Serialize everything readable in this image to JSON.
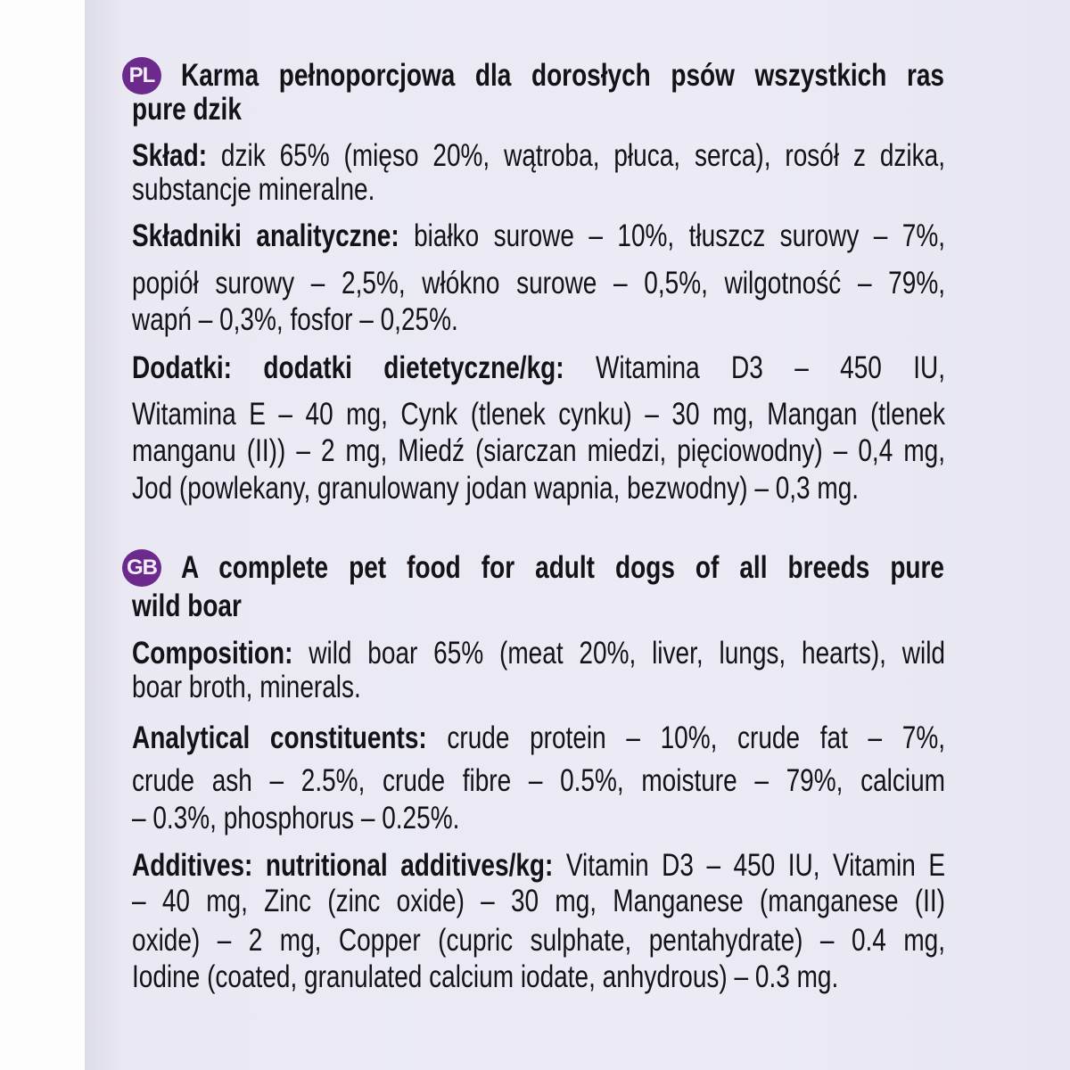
{
  "colors": {
    "badge": "#6b2a8c",
    "label_background": "#ebeaf4",
    "text": "#141216"
  },
  "sections": [
    {
      "badge": "PL",
      "lines": [
        {
          "top": "",
          "segments": [
            {
              "bold": true,
              "text": "Karma pełnoporcjowa dla dorosłych psów wszystkich ras"
            }
          ],
          "justify": true,
          "head": true
        },
        {
          "segments": [
            {
              "bold": true,
              "text": "pure dzik"
            }
          ]
        },
        {
          "segments": [
            {
              "bold": true,
              "text": "Skład: "
            },
            {
              "bold": false,
              "text": "dzik 65% (mięso 20%, wątroba, płuca, serca), rosół z dzika,"
            }
          ],
          "justify": true
        },
        {
          "segments": [
            {
              "bold": false,
              "text": "substancje mineralne."
            }
          ]
        },
        {
          "segments": [
            {
              "bold": true,
              "text": "Składniki analityczne: "
            },
            {
              "bold": false,
              "text": "białko surowe – 10%, tłuszcz surowy – 7%,"
            }
          ],
          "justify": true
        },
        {
          "segments": [
            {
              "bold": false,
              "text": "popiół surowy – 2,5%, włókno surowe – 0,5%, wilgotność – 79%,"
            }
          ],
          "justify": true
        },
        {
          "segments": [
            {
              "bold": false,
              "text": "wapń – 0,3%, fosfor – 0,25%."
            }
          ]
        },
        {
          "segments": [
            {
              "bold": true,
              "text": "Dodatki: dodatki dietetyczne/kg: "
            },
            {
              "bold": false,
              "text": "Witamina D3 – 450 IU,"
            }
          ],
          "justify": true
        },
        {
          "segments": [
            {
              "bold": false,
              "text": "Witamina E – 40 mg, Cynk (tlenek cynku) – 30 mg, Mangan (tlenek"
            }
          ],
          "justify": true
        },
        {
          "segments": [
            {
              "bold": false,
              "text": "manganu (II)) – 2 mg, Miedź (siarczan miedzi, pięciowodny) – 0,4 mg,"
            }
          ],
          "justify": true
        },
        {
          "segments": [
            {
              "bold": false,
              "text": "Jod (powlekany, granulowany jodan wapnia, bezwodny) – 0,3 mg."
            }
          ]
        }
      ]
    },
    {
      "badge": "GB",
      "lines": [
        {
          "segments": [
            {
              "bold": true,
              "text": "A complete pet food for adult dogs of all breeds pure"
            }
          ],
          "justify": true,
          "head": true
        },
        {
          "segments": [
            {
              "bold": true,
              "text": "wild boar"
            }
          ]
        },
        {
          "segments": [
            {
              "bold": true,
              "text": "Composition: "
            },
            {
              "bold": false,
              "text": "wild boar 65% (meat 20%, liver, lungs, hearts), wild"
            }
          ],
          "justify": true
        },
        {
          "segments": [
            {
              "bold": false,
              "text": "boar broth, minerals."
            }
          ]
        },
        {
          "segments": [
            {
              "bold": true,
              "text": "Analytical constituents: "
            },
            {
              "bold": false,
              "text": "crude protein – 10%, crude fat – 7%,"
            }
          ],
          "justify": true
        },
        {
          "segments": [
            {
              "bold": false,
              "text": "crude ash – 2.5%, crude fibre – 0.5%, moisture – 79%, calcium"
            }
          ],
          "justify": true
        },
        {
          "segments": [
            {
              "bold": false,
              "text": "– 0.3%, phosphorus – 0.25%."
            }
          ]
        },
        {
          "segments": [
            {
              "bold": true,
              "text": "Additives: nutritional additives/kg: "
            },
            {
              "bold": false,
              "text": "Vitamin D3 – 450 IU, Vitamin E"
            }
          ],
          "justify": true
        },
        {
          "segments": [
            {
              "bold": false,
              "text": "– 40 mg, Zinc (zinc oxide) – 30 mg, Manganese (manganese (II)"
            }
          ],
          "justify": true
        },
        {
          "segments": [
            {
              "bold": false,
              "text": "oxide) – 2 mg, Copper (cupric sulphate, pentahydrate) – 0.4 mg,"
            }
          ],
          "justify": true
        },
        {
          "segments": [
            {
              "bold": false,
              "text": "Iodine (coated, granulated calcium iodate, anhydrous) – 0.3 mg."
            }
          ]
        }
      ]
    }
  ]
}
